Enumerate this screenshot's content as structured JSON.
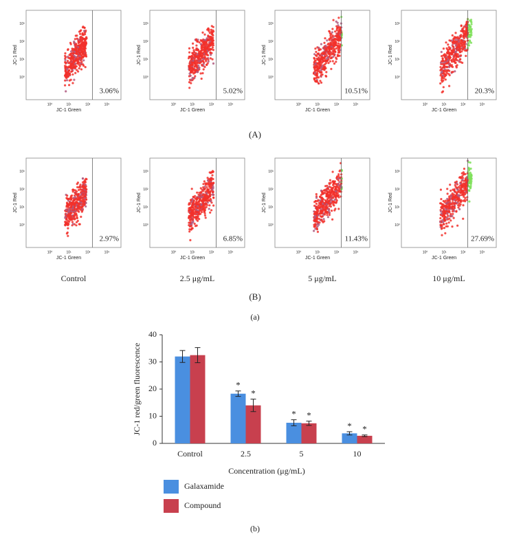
{
  "figure": {
    "y_axis_label": "JC-1 Red",
    "x_axis_label": "JC-1 Green",
    "ticks": [
      "10⁰",
      "10¹",
      "10²",
      "10³"
    ],
    "rows": [
      {
        "label": "(A)",
        "percents": [
          "3.06%",
          "5.02%",
          "10.51%",
          "20.3%"
        ]
      },
      {
        "label": "(B)",
        "percents": [
          "2.97%",
          "6.85%",
          "11.43%",
          "27.69%"
        ]
      }
    ],
    "group_labels": [
      "Control",
      "2.5 μg/mL",
      "5 μg/mL",
      "10 μg/mL"
    ],
    "part_labels": [
      "(a)",
      "(b)"
    ]
  },
  "chart_data": {
    "type": "bar",
    "xlabel": "Concentration (μg/mL)",
    "ylabel": "JC-1 red/green fluorescence",
    "categories": [
      "Control",
      "2.5",
      "5",
      "10"
    ],
    "series": [
      {
        "name": "Galaxamide",
        "color": "#4a8fe0",
        "values": [
          32,
          18.3,
          7.6,
          3.7
        ],
        "errors": [
          2.2,
          1,
          1.1,
          0.6
        ],
        "markers": [
          null,
          "*",
          "*",
          "*"
        ]
      },
      {
        "name": "Compound",
        "color": "#c8404e",
        "values": [
          32.5,
          14,
          7.4,
          2.8
        ],
        "errors": [
          2.8,
          2.3,
          0.8,
          0.3
        ],
        "markers": [
          null,
          "*",
          "*",
          "*"
        ]
      }
    ],
    "ylim": [
      0,
      40
    ],
    "yticks": [
      0,
      10,
      20,
      30,
      40
    ],
    "legend": "bottom-left"
  }
}
